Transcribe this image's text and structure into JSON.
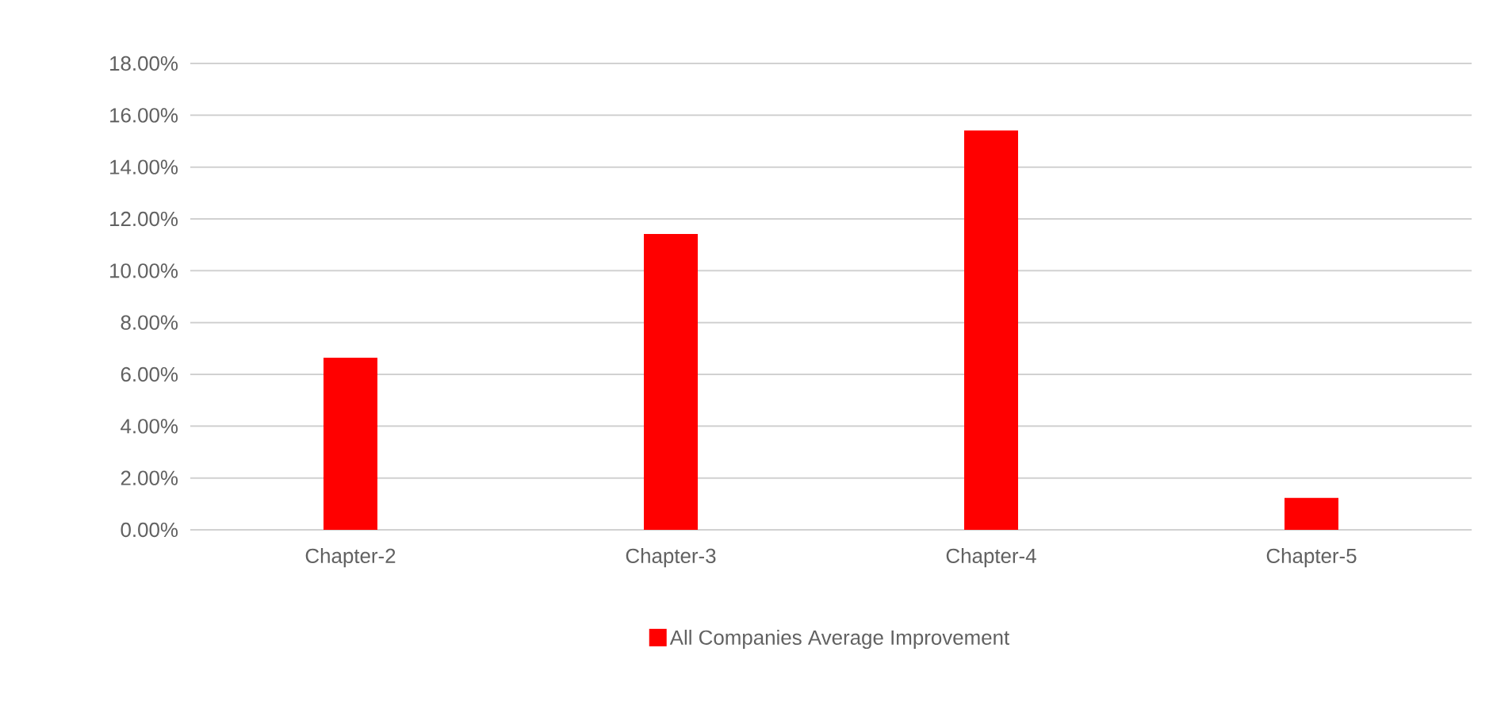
{
  "chart_data": {
    "type": "bar",
    "categories": [
      "Chapter-2",
      "Chapter-3",
      "Chapter-4",
      "Chapter-5"
    ],
    "series": [
      {
        "name": "All Companies Average Improvement",
        "color": "#ff0000",
        "values": [
          6.64,
          11.42,
          15.41,
          1.23
        ]
      }
    ],
    "ylim": [
      0,
      18
    ],
    "yticks": [
      {
        "value": 0,
        "label": "0.00%"
      },
      {
        "value": 2,
        "label": "2.00%"
      },
      {
        "value": 4,
        "label": "4.00%"
      },
      {
        "value": 6,
        "label": "6.00%"
      },
      {
        "value": 8,
        "label": "8.00%"
      },
      {
        "value": 10,
        "label": "10.00%"
      },
      {
        "value": 12,
        "label": "12.00%"
      },
      {
        "value": 14,
        "label": "14.00%"
      },
      {
        "value": 16,
        "label": "16.00%"
      },
      {
        "value": 18,
        "label": "18.00%"
      }
    ],
    "grid": "y",
    "legend": "bottom"
  }
}
